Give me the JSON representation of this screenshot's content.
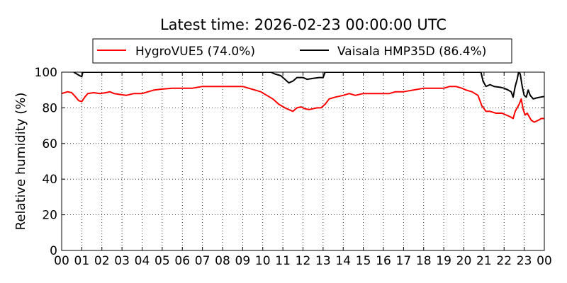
{
  "chart_data": {
    "type": "line",
    "title": "Latest time: 2026-02-23 00:00:00 UTC",
    "xlabel": "",
    "ylabel": "Relative humidity (%)",
    "xlim": [
      0,
      24
    ],
    "ylim": [
      0,
      100
    ],
    "grid": true,
    "legend_position": "top",
    "x_tick_labels": [
      "00",
      "01",
      "02",
      "03",
      "04",
      "05",
      "06",
      "07",
      "08",
      "09",
      "10",
      "11",
      "12",
      "13",
      "14",
      "15",
      "16",
      "17",
      "18",
      "19",
      "20",
      "21",
      "22",
      "23",
      "00"
    ],
    "y_tick_labels": [
      "0",
      "20",
      "40",
      "60",
      "80",
      "100"
    ],
    "series": [
      {
        "name": "HygroVUE5 (74.0%)",
        "color": "#ff0000",
        "points": [
          [
            0,
            88
          ],
          [
            0.3,
            89
          ],
          [
            0.5,
            88.5
          ],
          [
            0.7,
            86
          ],
          [
            0.85,
            84
          ],
          [
            1.0,
            83.5
          ],
          [
            1.15,
            86
          ],
          [
            1.3,
            88
          ],
          [
            1.6,
            88.5
          ],
          [
            1.9,
            88
          ],
          [
            2.2,
            88.5
          ],
          [
            2.4,
            89
          ],
          [
            2.6,
            88
          ],
          [
            2.9,
            87.5
          ],
          [
            3.2,
            87
          ],
          [
            3.6,
            88
          ],
          [
            4.0,
            88
          ],
          [
            4.3,
            89
          ],
          [
            4.6,
            90
          ],
          [
            5.0,
            90.5
          ],
          [
            5.5,
            91
          ],
          [
            6.0,
            91
          ],
          [
            6.5,
            91
          ],
          [
            7.0,
            92
          ],
          [
            7.5,
            92
          ],
          [
            8.0,
            92
          ],
          [
            8.5,
            92
          ],
          [
            9.0,
            92
          ],
          [
            9.3,
            91
          ],
          [
            9.6,
            90
          ],
          [
            9.9,
            89
          ],
          [
            10.2,
            87
          ],
          [
            10.5,
            85
          ],
          [
            10.8,
            82
          ],
          [
            11.1,
            80
          ],
          [
            11.3,
            79
          ],
          [
            11.5,
            78
          ],
          [
            11.7,
            80
          ],
          [
            11.9,
            80.5
          ],
          [
            12.1,
            79.5
          ],
          [
            12.3,
            79
          ],
          [
            12.5,
            79.5
          ],
          [
            12.7,
            80
          ],
          [
            12.9,
            80
          ],
          [
            13.1,
            82
          ],
          [
            13.3,
            85
          ],
          [
            13.6,
            86
          ],
          [
            14.0,
            87
          ],
          [
            14.3,
            88
          ],
          [
            14.6,
            87
          ],
          [
            15.0,
            88
          ],
          [
            15.5,
            88
          ],
          [
            16.0,
            88
          ],
          [
            16.3,
            88
          ],
          [
            16.6,
            89
          ],
          [
            17.0,
            89
          ],
          [
            17.5,
            90
          ],
          [
            18.0,
            91
          ],
          [
            18.5,
            91
          ],
          [
            19.0,
            91
          ],
          [
            19.3,
            92
          ],
          [
            19.6,
            92
          ],
          [
            19.9,
            91
          ],
          [
            20.1,
            90
          ],
          [
            20.4,
            89
          ],
          [
            20.7,
            87
          ],
          [
            20.9,
            81
          ],
          [
            21.1,
            78
          ],
          [
            21.3,
            78
          ],
          [
            21.6,
            77
          ],
          [
            21.9,
            77
          ],
          [
            22.1,
            76
          ],
          [
            22.3,
            75
          ],
          [
            22.45,
            74
          ],
          [
            22.55,
            78
          ],
          [
            22.65,
            80
          ],
          [
            22.75,
            82
          ],
          [
            22.85,
            85
          ],
          [
            22.95,
            79
          ],
          [
            23.05,
            76
          ],
          [
            23.15,
            77
          ],
          [
            23.25,
            75
          ],
          [
            23.35,
            73
          ],
          [
            23.5,
            72
          ],
          [
            23.7,
            73
          ],
          [
            23.85,
            74
          ],
          [
            24.0,
            74
          ]
        ]
      },
      {
        "name": "Vaisala HMP35D (86.4%)",
        "color": "#000000",
        "points": [
          [
            0.6,
            100
          ],
          [
            0.75,
            99
          ],
          [
            0.9,
            98
          ],
          [
            1.0,
            97.5
          ],
          [
            1.05,
            100
          ],
          [
            10.4,
            100
          ],
          [
            10.6,
            99
          ],
          [
            10.9,
            98
          ],
          [
            11.1,
            96
          ],
          [
            11.3,
            94
          ],
          [
            11.5,
            95
          ],
          [
            11.7,
            97
          ],
          [
            12.0,
            97
          ],
          [
            12.2,
            96
          ],
          [
            12.5,
            96.5
          ],
          [
            12.8,
            97
          ],
          [
            13.0,
            97
          ],
          [
            13.1,
            100
          ],
          [
            20.85,
            100
          ],
          [
            20.95,
            95
          ],
          [
            21.1,
            92
          ],
          [
            21.3,
            93
          ],
          [
            21.5,
            92
          ],
          [
            21.8,
            91.5
          ],
          [
            22.0,
            91
          ],
          [
            22.2,
            90
          ],
          [
            22.35,
            89
          ],
          [
            22.45,
            86
          ],
          [
            22.55,
            92
          ],
          [
            22.65,
            96
          ],
          [
            22.72,
            100
          ],
          [
            22.8,
            99
          ],
          [
            22.9,
            92
          ],
          [
            23.0,
            87
          ],
          [
            23.1,
            86
          ],
          [
            23.2,
            90
          ],
          [
            23.3,
            87
          ],
          [
            23.45,
            85
          ],
          [
            23.6,
            85.5
          ],
          [
            23.8,
            86
          ],
          [
            24.0,
            86.4
          ]
        ]
      }
    ]
  }
}
